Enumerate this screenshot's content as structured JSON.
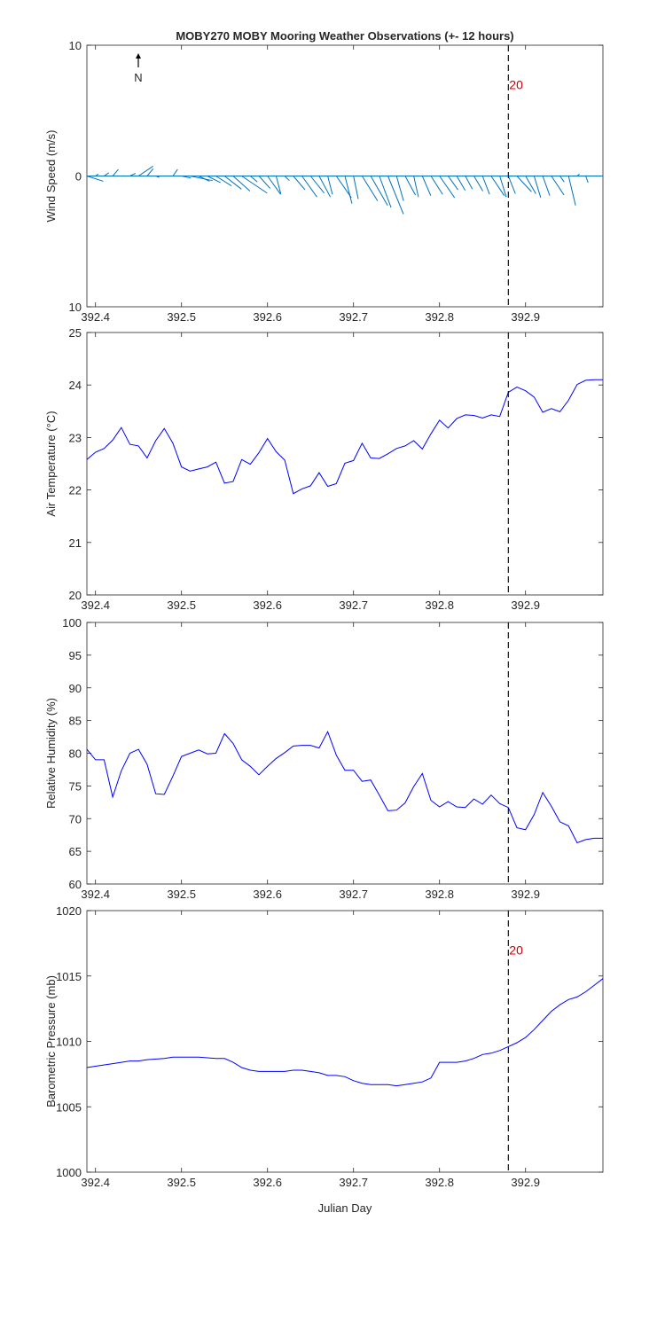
{
  "title": "MOBY270 MOBY Mooring Weather Observations (+- 12 hours)",
  "xlabel": "Julian Day",
  "north_label": "N",
  "marker_x": 392.88,
  "colors": {
    "series": "#0000ff",
    "wind": "#0072bd",
    "annotation": "#cc0000",
    "axis": "#262626",
    "marker": "#000000"
  },
  "chart_data": [
    {
      "type": "quiver",
      "ylabel": "Wind Speed (m/s)",
      "xlim": [
        392.39,
        392.99
      ],
      "ylim": [
        -10,
        10
      ],
      "yticks": [
        10,
        0,
        -10
      ],
      "ytick_labels": [
        "10",
        "0",
        "10"
      ],
      "xticks": [
        392.4,
        392.5,
        392.6,
        392.7,
        392.8,
        392.9
      ],
      "xtick_labels": [
        "392.4",
        "392.5",
        "392.6",
        "392.7",
        "392.8",
        "392.9"
      ],
      "annotation": {
        "x": 392.88,
        "y": 7,
        "text": "20"
      },
      "vectors": [
        [
          392.39,
          3.5,
          -0.8
        ],
        [
          392.4,
          0.6,
          0.3
        ],
        [
          392.41,
          1.0,
          0.5
        ],
        [
          392.42,
          1.2,
          1.0
        ],
        [
          392.44,
          1.2,
          0.4
        ],
        [
          392.45,
          3.1,
          1.5
        ],
        [
          392.46,
          1.3,
          1.1
        ],
        [
          392.47,
          0.8,
          -0.2
        ],
        [
          392.48,
          0.6,
          0.0
        ],
        [
          392.49,
          1.0,
          1.0
        ],
        [
          392.5,
          2.0,
          -0.3
        ],
        [
          392.51,
          4.8,
          -0.7
        ],
        [
          392.52,
          2.3,
          -0.8
        ],
        [
          392.53,
          2.8,
          -1.0
        ],
        [
          392.54,
          3.3,
          -1.5
        ],
        [
          392.55,
          3.6,
          -2.0
        ],
        [
          392.56,
          3.6,
          -2.3
        ],
        [
          392.57,
          5.4,
          -2.6
        ],
        [
          392.58,
          1.5,
          -0.9
        ],
        [
          392.59,
          2.4,
          -1.9
        ],
        [
          392.6,
          2.8,
          -2.8
        ],
        [
          392.61,
          1.0,
          -2.7
        ],
        [
          392.62,
          1.0,
          -0.7
        ],
        [
          392.63,
          2.5,
          -2.1
        ],
        [
          392.64,
          3.2,
          -3.2
        ],
        [
          392.65,
          2.9,
          -2.6
        ],
        [
          392.66,
          2.4,
          -3.2
        ],
        [
          392.67,
          1.0,
          -2.8
        ],
        [
          392.68,
          3.2,
          -3.3
        ],
        [
          392.69,
          1.5,
          -4.2
        ],
        [
          392.7,
          1.0,
          -3.5
        ],
        [
          392.71,
          3.3,
          -3.8
        ],
        [
          392.72,
          3.6,
          -4.5
        ],
        [
          392.73,
          2.5,
          -4.8
        ],
        [
          392.74,
          3.3,
          -5.8
        ],
        [
          392.75,
          1.5,
          -3.8
        ],
        [
          392.76,
          2.2,
          -2.9
        ],
        [
          392.77,
          1.0,
          -3.2
        ],
        [
          392.78,
          1.8,
          -3.0
        ],
        [
          392.79,
          2.5,
          -2.8
        ],
        [
          392.8,
          3.2,
          -3.3
        ],
        [
          392.81,
          2.1,
          -2.1
        ],
        [
          392.82,
          1.8,
          -2.2
        ],
        [
          392.83,
          1.5,
          -2.0
        ],
        [
          392.84,
          1.9,
          -2.3
        ],
        [
          392.85,
          1.5,
          -2.8
        ],
        [
          392.86,
          2.8,
          -3.0
        ],
        [
          392.87,
          1.4,
          -3.2
        ],
        [
          392.88,
          1.5,
          -2.7
        ],
        [
          392.89,
          3.1,
          -2.4
        ],
        [
          392.9,
          2.2,
          -2.7
        ],
        [
          392.91,
          1.4,
          -3.3
        ],
        [
          392.92,
          1.5,
          -3.0
        ],
        [
          392.93,
          2.7,
          -2.9
        ],
        [
          392.94,
          0.9,
          -0.9
        ],
        [
          392.95,
          1.5,
          -4.5
        ],
        [
          392.96,
          0.5,
          0.3
        ],
        [
          392.97,
          0.5,
          -1.0
        ],
        [
          392.98,
          0.0,
          0.0
        ]
      ]
    },
    {
      "type": "line",
      "ylabel": "Air Temperature (°C)",
      "xlim": [
        392.39,
        392.99
      ],
      "ylim": [
        20,
        25
      ],
      "yticks": [
        20,
        21,
        22,
        23,
        24,
        25
      ],
      "ytick_labels": [
        "20",
        "21",
        "22",
        "23",
        "24",
        "25"
      ],
      "xticks": [
        392.4,
        392.5,
        392.6,
        392.7,
        392.8,
        392.9
      ],
      "xtick_labels": [
        "392.4",
        "392.5",
        "392.6",
        "392.7",
        "392.8",
        "392.9"
      ],
      "x": [
        392.39,
        392.4,
        392.41,
        392.42,
        392.43,
        392.44,
        392.45,
        392.46,
        392.47,
        392.48,
        392.49,
        392.5,
        392.51,
        392.52,
        392.53,
        392.54,
        392.55,
        392.56,
        392.57,
        392.58,
        392.59,
        392.6,
        392.61,
        392.62,
        392.63,
        392.64,
        392.65,
        392.66,
        392.67,
        392.68,
        392.69,
        392.7,
        392.71,
        392.72,
        392.73,
        392.74,
        392.75,
        392.76,
        392.77,
        392.78,
        392.79,
        392.8,
        392.81,
        392.82,
        392.83,
        392.84,
        392.85,
        392.86,
        392.87,
        392.88,
        392.89,
        392.9,
        392.91,
        392.92,
        392.93,
        392.94,
        392.95,
        392.96,
        392.97,
        392.98,
        392.99
      ],
      "y": [
        22.58,
        22.72,
        22.79,
        22.95,
        23.19,
        22.87,
        22.84,
        22.61,
        22.94,
        23.17,
        22.89,
        22.44,
        22.36,
        22.4,
        22.44,
        22.53,
        22.13,
        22.16,
        22.58,
        22.49,
        22.71,
        22.98,
        22.73,
        22.57,
        21.93,
        22.02,
        22.08,
        22.33,
        22.07,
        22.12,
        22.51,
        22.56,
        22.89,
        22.61,
        22.6,
        22.69,
        22.79,
        22.84,
        22.94,
        22.78,
        23.07,
        23.33,
        23.18,
        23.36,
        23.43,
        23.42,
        23.37,
        23.43,
        23.4,
        23.86,
        23.96,
        23.89,
        23.77,
        23.48,
        23.55,
        23.49,
        23.71,
        24.01,
        24.09,
        24.1,
        24.1
      ]
    },
    {
      "type": "line",
      "ylabel": "Relative Humidity (%)",
      "xlim": [
        392.39,
        392.99
      ],
      "ylim": [
        60,
        100
      ],
      "yticks": [
        60,
        65,
        70,
        75,
        80,
        85,
        90,
        95,
        100
      ],
      "ytick_labels": [
        "60",
        "65",
        "70",
        "75",
        "80",
        "85",
        "90",
        "95",
        "100"
      ],
      "xticks": [
        392.4,
        392.5,
        392.6,
        392.7,
        392.8,
        392.9
      ],
      "xtick_labels": [
        "392.4",
        "392.5",
        "392.6",
        "392.7",
        "392.8",
        "392.9"
      ],
      "x": [
        392.39,
        392.4,
        392.41,
        392.42,
        392.43,
        392.44,
        392.45,
        392.46,
        392.47,
        392.48,
        392.49,
        392.5,
        392.51,
        392.52,
        392.53,
        392.54,
        392.55,
        392.56,
        392.57,
        392.58,
        392.59,
        392.6,
        392.61,
        392.62,
        392.63,
        392.64,
        392.65,
        392.66,
        392.67,
        392.68,
        392.69,
        392.7,
        392.71,
        392.72,
        392.73,
        392.74,
        392.75,
        392.76,
        392.77,
        392.78,
        392.79,
        392.8,
        392.81,
        392.82,
        392.83,
        392.84,
        392.85,
        392.86,
        392.87,
        392.88,
        392.89,
        392.9,
        392.91,
        392.92,
        392.93,
        392.94,
        392.95,
        392.96,
        392.97,
        392.98,
        392.99
      ],
      "y": [
        80.6,
        79.0,
        79.0,
        73.3,
        77.3,
        80.0,
        80.6,
        78.3,
        73.8,
        73.7,
        76.5,
        79.5,
        80.0,
        80.5,
        79.9,
        80.0,
        83.0,
        81.5,
        79.0,
        78.0,
        76.7,
        78.0,
        79.2,
        80.1,
        81.1,
        81.2,
        81.2,
        80.8,
        83.3,
        79.7,
        77.4,
        77.4,
        75.7,
        75.9,
        73.6,
        71.2,
        71.3,
        72.4,
        74.9,
        76.9,
        72.8,
        71.8,
        72.6,
        71.8,
        71.7,
        73.0,
        72.2,
        73.6,
        72.3,
        71.7,
        68.6,
        68.3,
        70.6,
        74.0,
        71.9,
        69.5,
        68.9,
        66.3,
        66.8,
        67.0,
        67.0
      ]
    },
    {
      "type": "line",
      "ylabel": "Barometric Pressure (mb)",
      "xlabel": "Julian Day",
      "xlim": [
        392.39,
        392.99
      ],
      "ylim": [
        1000,
        1020
      ],
      "yticks": [
        1000,
        1005,
        1010,
        1015,
        1020
      ],
      "ytick_labels": [
        "1000",
        "1005",
        "1010",
        "1015",
        "1020"
      ],
      "xticks": [
        392.4,
        392.5,
        392.6,
        392.7,
        392.8,
        392.9
      ],
      "xtick_labels": [
        "392.4",
        "392.5",
        "392.6",
        "392.7",
        "392.8",
        "392.9"
      ],
      "annotation": {
        "x": 392.88,
        "y": 1017,
        "text": "20"
      },
      "x": [
        392.39,
        392.4,
        392.42,
        392.44,
        392.45,
        392.46,
        392.48,
        392.49,
        392.5,
        392.52,
        392.54,
        392.55,
        392.56,
        392.57,
        392.58,
        392.59,
        392.6,
        392.61,
        392.62,
        392.63,
        392.64,
        392.65,
        392.66,
        392.67,
        392.68,
        392.69,
        392.7,
        392.71,
        392.72,
        392.73,
        392.74,
        392.75,
        392.76,
        392.77,
        392.78,
        392.79,
        392.8,
        392.81,
        392.82,
        392.83,
        392.84,
        392.85,
        392.86,
        392.87,
        392.88,
        392.89,
        392.9,
        392.91,
        392.92,
        392.93,
        392.94,
        392.95,
        392.96,
        392.97,
        392.98,
        392.99
      ],
      "y": [
        1008.0,
        1008.1,
        1008.3,
        1008.5,
        1008.5,
        1008.6,
        1008.7,
        1008.8,
        1008.8,
        1008.8,
        1008.7,
        1008.7,
        1008.4,
        1008.0,
        1007.8,
        1007.7,
        1007.7,
        1007.7,
        1007.7,
        1007.8,
        1007.8,
        1007.7,
        1007.6,
        1007.4,
        1007.4,
        1007.3,
        1007.0,
        1006.8,
        1006.7,
        1006.7,
        1006.7,
        1006.6,
        1006.7,
        1006.8,
        1006.9,
        1007.2,
        1008.4,
        1008.4,
        1008.4,
        1008.5,
        1008.7,
        1009.0,
        1009.1,
        1009.3,
        1009.6,
        1009.9,
        1010.3,
        1010.9,
        1011.6,
        1012.3,
        1012.8,
        1013.2,
        1013.4,
        1013.8,
        1014.3,
        1014.8
      ]
    }
  ]
}
